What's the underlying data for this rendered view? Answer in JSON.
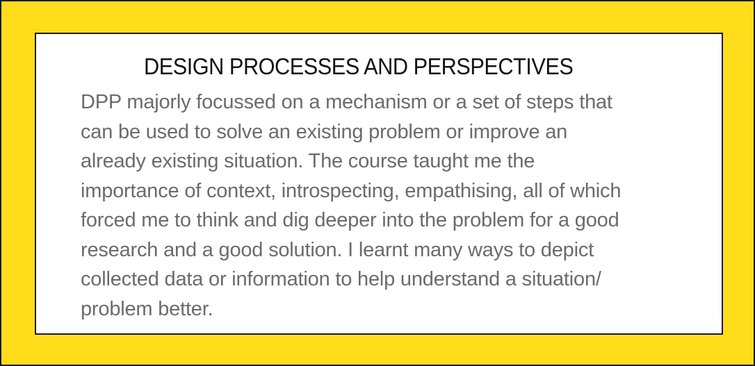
{
  "colors": {
    "frame_background": "#FFDD1A",
    "panel_background": "#FFFFFF",
    "border": "#1A1A1A",
    "title_text": "#111111",
    "body_text": "#6B6B6B"
  },
  "card": {
    "title": "DESIGN PROCESSES AND PERSPECTIVES",
    "body_lines": [
      "DPP majorly focussed on a mechanism or a set of steps that",
      "can be used to solve an existing problem or improve an",
      "already existing situation. The course taught me the",
      "importance of context, introspecting, empathising, all of which",
      "forced me to think and dig deeper into the problem for a good",
      "research and a good solution. I learnt many ways to depict",
      "collected data or information to help understand a situation/",
      "problem better."
    ]
  }
}
